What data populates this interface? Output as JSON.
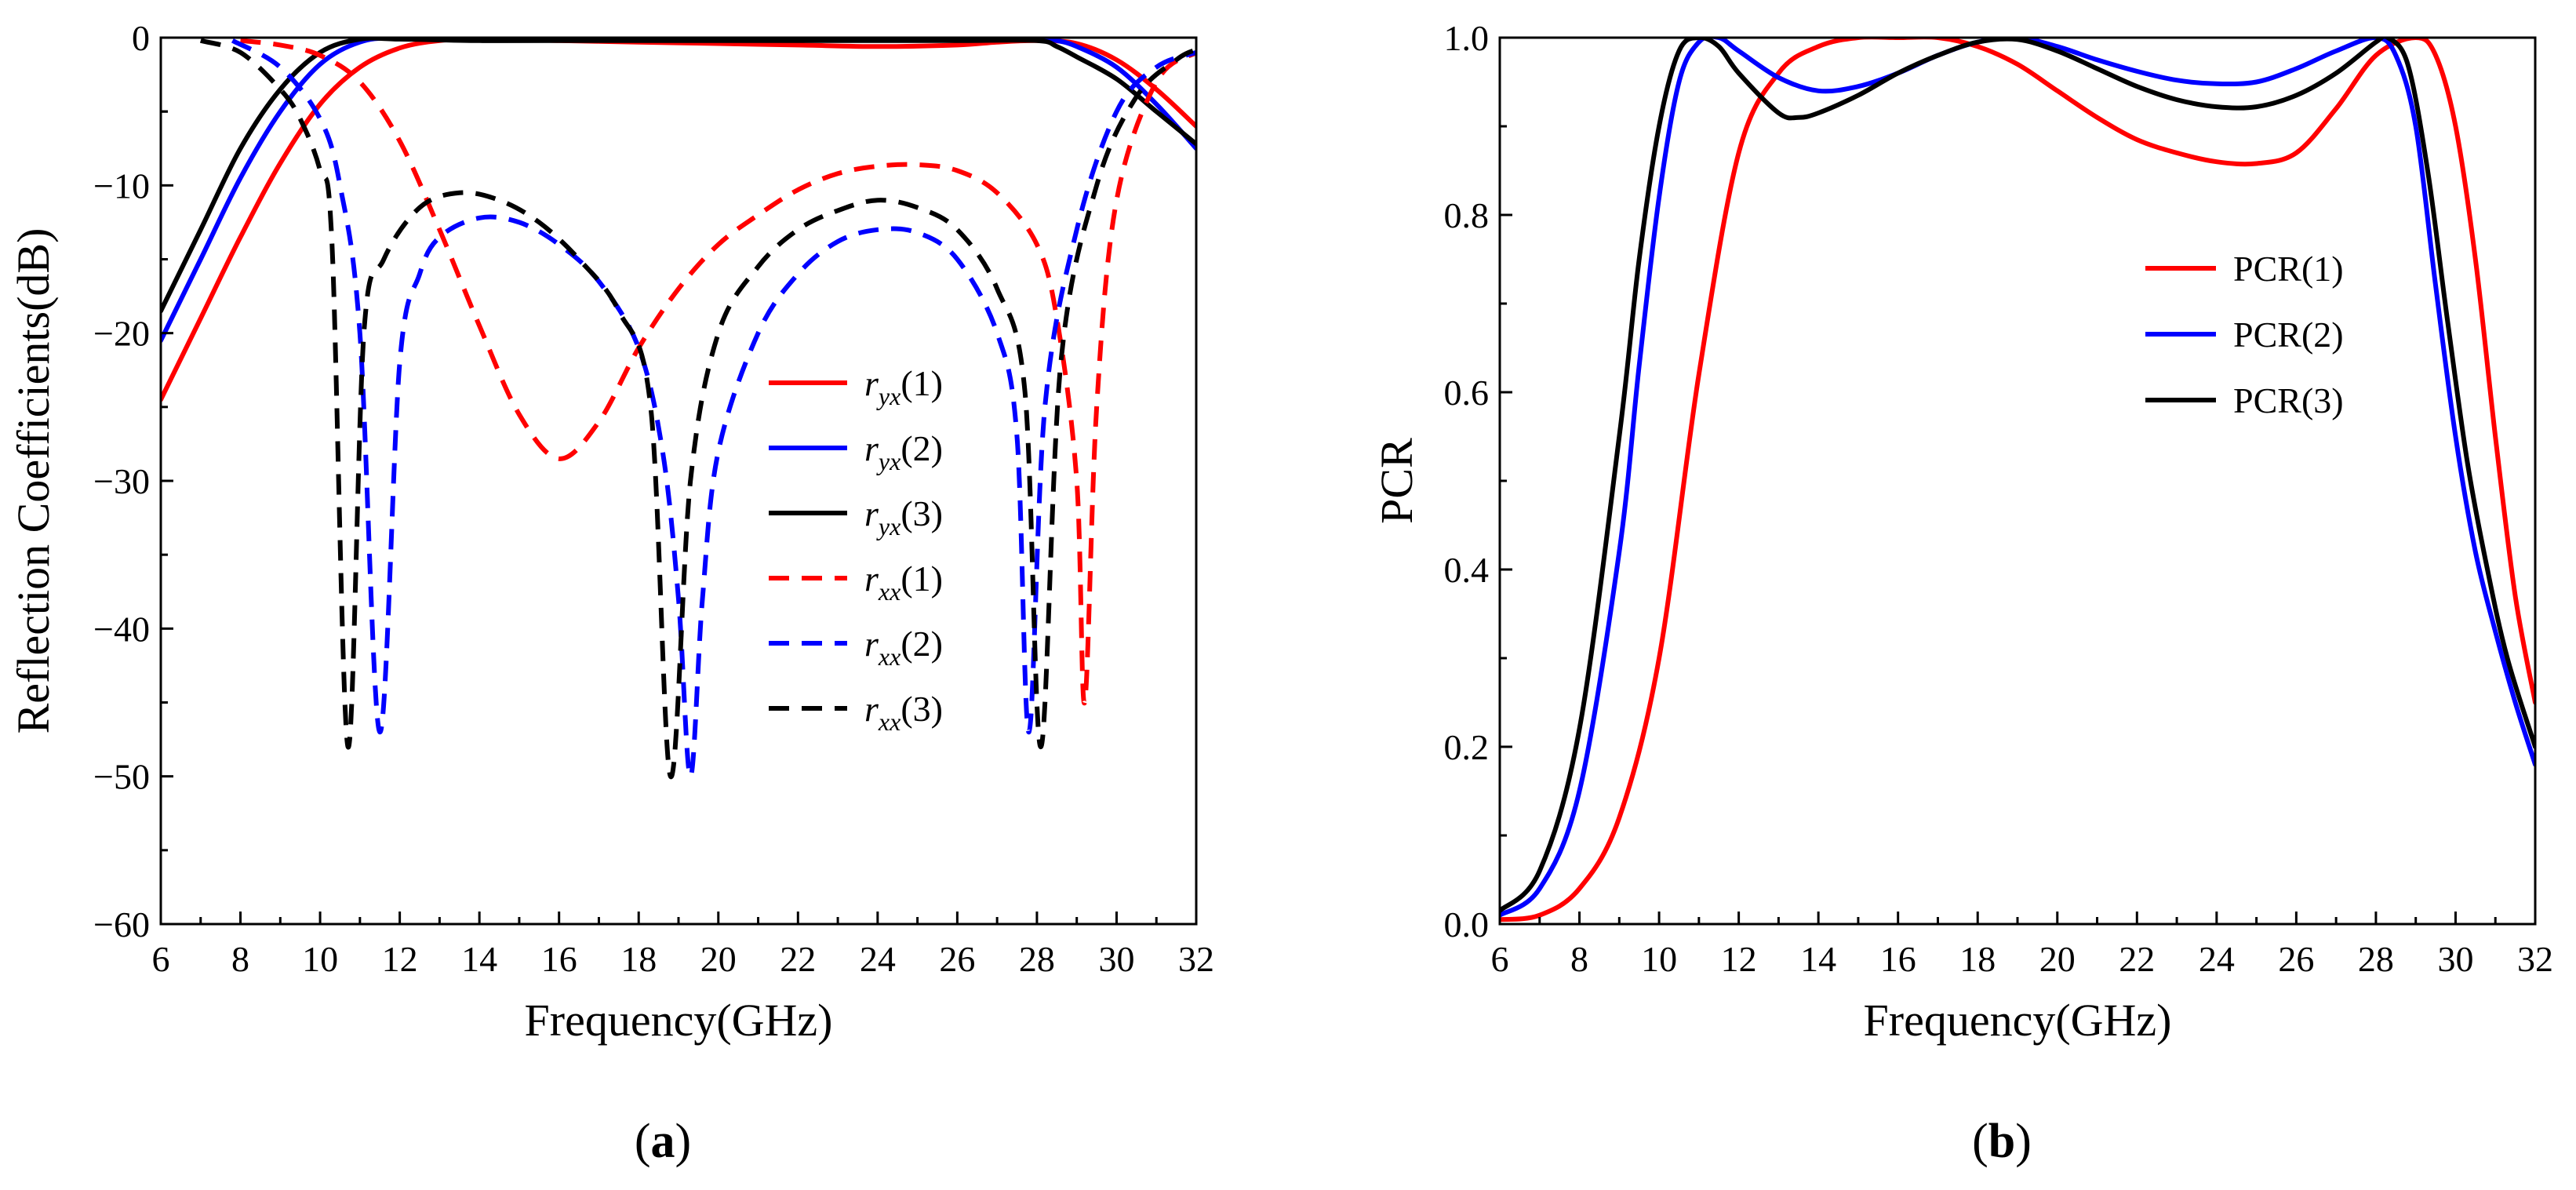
{
  "chart_data": [
    {
      "id": "a",
      "type": "line",
      "panel_label": "(a)",
      "panel_letter": "a",
      "xlabel": "Frequency(GHz)",
      "ylabel": "Reflection Coefficients(dB)",
      "xlim": [
        6,
        32
      ],
      "ylim": [
        -60,
        0
      ],
      "xticks": [
        6,
        8,
        10,
        12,
        14,
        16,
        18,
        20,
        22,
        24,
        26,
        28,
        30,
        32
      ],
      "yticks": [
        0,
        -10,
        -20,
        -30,
        -40,
        -50,
        -60
      ],
      "ytick_labels": [
        "0",
        "−10",
        "−20",
        "−30",
        "−40",
        "−50",
        "−60"
      ],
      "legend_position": "center-right",
      "series": [
        {
          "name": "r_yx(1)",
          "base": "r",
          "sub": "yx",
          "suffix": "(1)",
          "color": "#ff0000",
          "dash": false,
          "points": [
            [
              6,
              -24.5
            ],
            [
              7,
              -19
            ],
            [
              8,
              -13.5
            ],
            [
              9,
              -8.5
            ],
            [
              10,
              -4.5
            ],
            [
              11,
              -2
            ],
            [
              12,
              -0.7
            ],
            [
              13,
              -0.2
            ],
            [
              14,
              -0.1
            ],
            [
              16,
              -0.2
            ],
            [
              18,
              -0.3
            ],
            [
              20,
              -0.4
            ],
            [
              22,
              -0.5
            ],
            [
              24,
              -0.6
            ],
            [
              26,
              -0.5
            ],
            [
              27,
              -0.3
            ],
            [
              28,
              -0.2
            ],
            [
              29,
              -0.4
            ],
            [
              30,
              -1.5
            ],
            [
              31,
              -3.5
            ],
            [
              32,
              -6
            ]
          ]
        },
        {
          "name": "r_yx(2)",
          "base": "r",
          "sub": "yx",
          "suffix": "(2)",
          "color": "#0000ff",
          "dash": false,
          "points": [
            [
              6,
              -20.5
            ],
            [
              7,
              -15
            ],
            [
              8,
              -9.5
            ],
            [
              9,
              -5
            ],
            [
              10,
              -1.8
            ],
            [
              11,
              -0.3
            ],
            [
              12,
              0
            ],
            [
              14,
              0
            ],
            [
              16,
              0
            ],
            [
              18,
              0
            ],
            [
              20,
              0
            ],
            [
              22,
              0
            ],
            [
              24,
              0
            ],
            [
              26,
              0
            ],
            [
              28,
              0
            ],
            [
              28.5,
              -0.2
            ],
            [
              29,
              -0.6
            ],
            [
              30,
              -2
            ],
            [
              31,
              -4.5
            ],
            [
              32,
              -7.5
            ]
          ]
        },
        {
          "name": "r_yx(3)",
          "base": "r",
          "sub": "yx",
          "suffix": "(3)",
          "color": "#000000",
          "dash": false,
          "points": [
            [
              6,
              -18.5
            ],
            [
              7,
              -13
            ],
            [
              8,
              -7.5
            ],
            [
              9,
              -3.5
            ],
            [
              10,
              -1
            ],
            [
              11,
              -0.1
            ],
            [
              12,
              -0.1
            ],
            [
              14,
              -0.2
            ],
            [
              16,
              -0.2
            ],
            [
              18,
              -0.2
            ],
            [
              20,
              -0.2
            ],
            [
              22,
              -0.2
            ],
            [
              24,
              -0.2
            ],
            [
              26,
              -0.2
            ],
            [
              28,
              -0.2
            ],
            [
              28.5,
              -0.6
            ],
            [
              29,
              -1.3
            ],
            [
              30,
              -2.8
            ],
            [
              31,
              -5
            ],
            [
              32,
              -7.2
            ]
          ]
        },
        {
          "name": "r_xx(1)",
          "base": "r",
          "sub": "xx",
          "suffix": "(1)",
          "color": "#ff0000",
          "dash": true,
          "points": [
            [
              8,
              -0.2
            ],
            [
              9,
              -0.5
            ],
            [
              10,
              -1.2
            ],
            [
              11,
              -3
            ],
            [
              12,
              -7
            ],
            [
              13,
              -13
            ],
            [
              14,
              -19.5
            ],
            [
              15,
              -25.5
            ],
            [
              16,
              -28.5
            ],
            [
              17,
              -26
            ],
            [
              18,
              -21
            ],
            [
              19,
              -17
            ],
            [
              20,
              -14
            ],
            [
              21,
              -12
            ],
            [
              22,
              -10.3
            ],
            [
              23,
              -9.2
            ],
            [
              24,
              -8.7
            ],
            [
              25,
              -8.6
            ],
            [
              26,
              -9
            ],
            [
              27,
              -10.5
            ],
            [
              28,
              -14
            ],
            [
              28.5,
              -19
            ],
            [
              29,
              -30
            ],
            [
              29.2,
              -45
            ],
            [
              29.5,
              -25
            ],
            [
              30,
              -11
            ],
            [
              31,
              -3
            ],
            [
              32,
              -1
            ]
          ]
        },
        {
          "name": "r_xx(2)",
          "base": "r",
          "sub": "xx",
          "suffix": "(2)",
          "color": "#0000ff",
          "dash": true,
          "points": [
            [
              7.8,
              -0.2
            ],
            [
              9,
              -2
            ],
            [
              10,
              -5.5
            ],
            [
              10.5,
              -10
            ],
            [
              11,
              -20
            ],
            [
              11.5,
              -47
            ],
            [
              12,
              -22
            ],
            [
              12.5,
              -16
            ],
            [
              13,
              -13.5
            ],
            [
              14,
              -12.2
            ],
            [
              15,
              -12.5
            ],
            [
              16,
              -14
            ],
            [
              17,
              -16.5
            ],
            [
              18,
              -21
            ],
            [
              18.6,
              -28
            ],
            [
              19,
              -38
            ],
            [
              19.3,
              -50
            ],
            [
              19.6,
              -38
            ],
            [
              20,
              -28
            ],
            [
              21,
              -20
            ],
            [
              22,
              -16
            ],
            [
              23,
              -13.8
            ],
            [
              24,
              -13
            ],
            [
              25,
              -13.2
            ],
            [
              26,
              -15
            ],
            [
              27,
              -20
            ],
            [
              27.5,
              -27
            ],
            [
              27.8,
              -47
            ],
            [
              28.2,
              -25
            ],
            [
              29,
              -13
            ],
            [
              30,
              -5
            ],
            [
              31,
              -2
            ],
            [
              32,
              -1
            ]
          ]
        },
        {
          "name": "r_xx(3)",
          "base": "r",
          "sub": "xx",
          "suffix": "(3)",
          "color": "#000000",
          "dash": true,
          "points": [
            [
              7,
              -0.2
            ],
            [
              8,
              -1
            ],
            [
              9,
              -3.5
            ],
            [
              9.5,
              -5.5
            ],
            [
              10,
              -9
            ],
            [
              10.3,
              -14
            ],
            [
              10.7,
              -48
            ],
            [
              11.1,
              -20
            ],
            [
              11.6,
              -15
            ],
            [
              12.5,
              -11.5
            ],
            [
              13.5,
              -10.5
            ],
            [
              14.5,
              -11
            ],
            [
              15.5,
              -12.5
            ],
            [
              16.5,
              -15
            ],
            [
              17.5,
              -18.5
            ],
            [
              18.3,
              -25
            ],
            [
              18.8,
              -50
            ],
            [
              19.3,
              -30
            ],
            [
              20,
              -20
            ],
            [
              21,
              -15.5
            ],
            [
              22,
              -13
            ],
            [
              23,
              -11.7
            ],
            [
              24,
              -11
            ],
            [
              25,
              -11.5
            ],
            [
              26,
              -13
            ],
            [
              27,
              -17
            ],
            [
              27.7,
              -24
            ],
            [
              28.1,
              -48
            ],
            [
              28.6,
              -22
            ],
            [
              29.5,
              -10
            ],
            [
              30.5,
              -4
            ],
            [
              31.5,
              -1.5
            ],
            [
              32,
              -0.8
            ]
          ]
        }
      ]
    },
    {
      "id": "b",
      "type": "line",
      "panel_label": "(b)",
      "panel_letter": "b",
      "xlabel": "Frequency(GHz)",
      "ylabel": "PCR",
      "xlim": [
        6,
        32
      ],
      "ylim": [
        0,
        1
      ],
      "xticks": [
        6,
        8,
        10,
        12,
        14,
        16,
        18,
        20,
        22,
        24,
        26,
        28,
        30,
        32
      ],
      "yticks": [
        0,
        0.2,
        0.4,
        0.6,
        0.8,
        1.0
      ],
      "ytick_labels": [
        "0.0",
        "0.2",
        "0.4",
        "0.6",
        "0.8",
        "1.0"
      ],
      "legend_position": "center-right",
      "series": [
        {
          "name": "PCR(1)",
          "color": "#ff0000",
          "dash": false,
          "points": [
            [
              6,
              0.005
            ],
            [
              7,
              0.01
            ],
            [
              8,
              0.04
            ],
            [
              9,
              0.12
            ],
            [
              10,
              0.3
            ],
            [
              11,
              0.62
            ],
            [
              12,
              0.87
            ],
            [
              13,
              0.96
            ],
            [
              14,
              0.99
            ],
            [
              15,
              1.0
            ],
            [
              16,
              1.0
            ],
            [
              17,
              1.0
            ],
            [
              18,
              0.99
            ],
            [
              19,
              0.97
            ],
            [
              20,
              0.94
            ],
            [
              21,
              0.91
            ],
            [
              22,
              0.885
            ],
            [
              23,
              0.87
            ],
            [
              24,
              0.86
            ],
            [
              25,
              0.858
            ],
            [
              26,
              0.87
            ],
            [
              27,
              0.92
            ],
            [
              28,
              0.98
            ],
            [
              29,
              1.0
            ],
            [
              29.5,
              0.98
            ],
            [
              30,
              0.9
            ],
            [
              30.5,
              0.75
            ],
            [
              31,
              0.55
            ],
            [
              31.5,
              0.37
            ],
            [
              32,
              0.25
            ]
          ]
        },
        {
          "name": "PCR(2)",
          "color": "#0000ff",
          "dash": false,
          "points": [
            [
              6,
              0.01
            ],
            [
              7,
              0.04
            ],
            [
              8,
              0.15
            ],
            [
              9,
              0.42
            ],
            [
              9.5,
              0.63
            ],
            [
              10,
              0.82
            ],
            [
              10.5,
              0.95
            ],
            [
              11,
              0.995
            ],
            [
              11.5,
              1.0
            ],
            [
              12,
              0.985
            ],
            [
              13,
              0.955
            ],
            [
              14,
              0.94
            ],
            [
              15,
              0.945
            ],
            [
              16,
              0.96
            ],
            [
              17,
              0.98
            ],
            [
              18,
              0.995
            ],
            [
              19,
              1.0
            ],
            [
              20,
              0.99
            ],
            [
              21,
              0.975
            ],
            [
              22,
              0.962
            ],
            [
              23,
              0.952
            ],
            [
              24,
              0.948
            ],
            [
              25,
              0.95
            ],
            [
              26,
              0.965
            ],
            [
              27,
              0.985
            ],
            [
              28,
              1.0
            ],
            [
              28.5,
              0.98
            ],
            [
              29,
              0.9
            ],
            [
              29.5,
              0.72
            ],
            [
              30,
              0.55
            ],
            [
              30.5,
              0.42
            ],
            [
              31,
              0.33
            ],
            [
              31.5,
              0.25
            ],
            [
              32,
              0.18
            ]
          ]
        },
        {
          "name": "PCR(3)",
          "color": "#000000",
          "dash": false,
          "points": [
            [
              6,
              0.015
            ],
            [
              7,
              0.06
            ],
            [
              8,
              0.22
            ],
            [
              9,
              0.55
            ],
            [
              9.5,
              0.75
            ],
            [
              10,
              0.9
            ],
            [
              10.5,
              0.985
            ],
            [
              11,
              1.0
            ],
            [
              11.5,
              0.99
            ],
            [
              12,
              0.96
            ],
            [
              13,
              0.915
            ],
            [
              13.5,
              0.91
            ],
            [
              14,
              0.915
            ],
            [
              15,
              0.935
            ],
            [
              16,
              0.96
            ],
            [
              17,
              0.98
            ],
            [
              18,
              0.995
            ],
            [
              19,
              0.998
            ],
            [
              20,
              0.985
            ],
            [
              21,
              0.965
            ],
            [
              22,
              0.945
            ],
            [
              23,
              0.93
            ],
            [
              24,
              0.922
            ],
            [
              25,
              0.922
            ],
            [
              26,
              0.935
            ],
            [
              27,
              0.96
            ],
            [
              28,
              0.995
            ],
            [
              28.3,
              1.0
            ],
            [
              28.8,
              0.97
            ],
            [
              29.3,
              0.85
            ],
            [
              29.8,
              0.68
            ],
            [
              30.3,
              0.52
            ],
            [
              30.8,
              0.4
            ],
            [
              31.3,
              0.3
            ],
            [
              32,
              0.2
            ]
          ]
        }
      ]
    }
  ]
}
